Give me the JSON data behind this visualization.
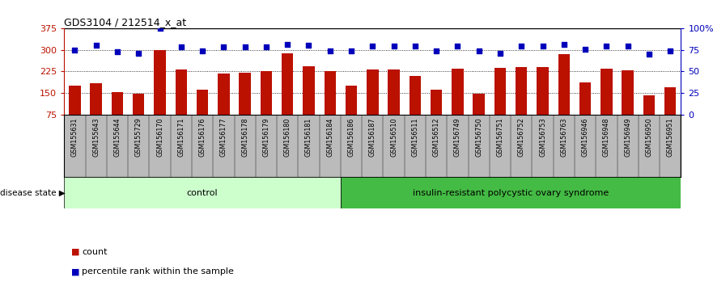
{
  "title": "GDS3104 / 212514_x_at",
  "samples": [
    "GSM155631",
    "GSM155643",
    "GSM155644",
    "GSM155729",
    "GSM156170",
    "GSM156171",
    "GSM156176",
    "GSM156177",
    "GSM156178",
    "GSM156179",
    "GSM156180",
    "GSM156181",
    "GSM156184",
    "GSM156186",
    "GSM156187",
    "GSM156510",
    "GSM156511",
    "GSM156512",
    "GSM156749",
    "GSM156750",
    "GSM156751",
    "GSM156752",
    "GSM156753",
    "GSM156763",
    "GSM156946",
    "GSM156948",
    "GSM156949",
    "GSM156950",
    "GSM156951"
  ],
  "counts": [
    175,
    183,
    153,
    147,
    300,
    232,
    162,
    218,
    220,
    225,
    288,
    242,
    225,
    175,
    232,
    232,
    210,
    162,
    235,
    148,
    238,
    240,
    240,
    285,
    188,
    235,
    228,
    143,
    170
  ],
  "percentiles": [
    75,
    81,
    73,
    71,
    100,
    79,
    74,
    79,
    79,
    79,
    82,
    81,
    74,
    74,
    80,
    80,
    80,
    74,
    80,
    74,
    71,
    80,
    80,
    82,
    76,
    80,
    80,
    70,
    74
  ],
  "n_control": 13,
  "control_label": "control",
  "disease_label": "insulin-resistant polycystic ovary syndrome",
  "disease_state_label": "disease state",
  "ylim_left": [
    75,
    375
  ],
  "ylim_right": [
    0,
    100
  ],
  "yticks_left": [
    75,
    150,
    225,
    300,
    375
  ],
  "yticks_right": [
    0,
    25,
    50,
    75,
    100
  ],
  "ytick_right_labels": [
    "0",
    "25",
    "50",
    "75",
    "100%"
  ],
  "bar_color": "#BB1100",
  "dot_color": "#0000BB",
  "control_bg": "#CCFFCC",
  "disease_bg": "#44BB44",
  "label_bg": "#BBBBBB",
  "grid_color": "#000000",
  "legend_bar_label": "count",
  "legend_dot_label": "percentile rank within the sample"
}
